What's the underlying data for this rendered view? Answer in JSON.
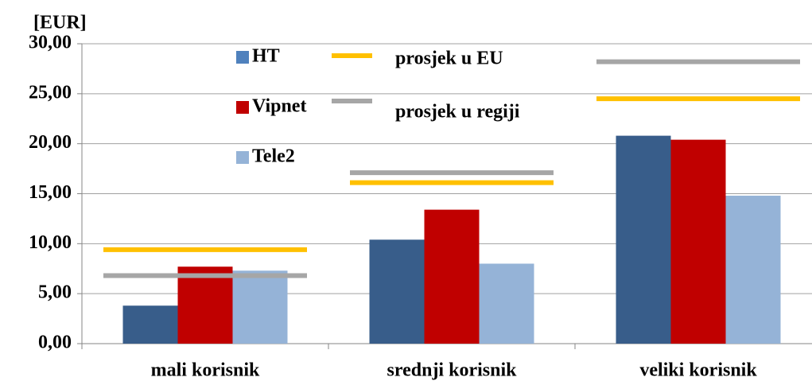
{
  "chart_data": {
    "type": "bar",
    "y_label": "[EUR]",
    "categories": [
      "mali korisnik",
      "srednji korisnik",
      "veliki korisnik"
    ],
    "series": [
      {
        "name": "HT",
        "color": "#385d8a",
        "values": [
          3.8,
          10.4,
          20.8
        ]
      },
      {
        "name": "Vipnet",
        "color": "#c00000",
        "values": [
          7.7,
          13.4,
          20.4
        ]
      },
      {
        "name": "Tele2",
        "color": "#95b3d7",
        "values": [
          7.3,
          8.0,
          14.8
        ]
      },
      {
        "name": "prosjek u EU",
        "type": "line",
        "color": "#ffc000",
        "values": [
          9.4,
          16.1,
          24.5
        ]
      },
      {
        "name": "prosjek u regiji",
        "type": "line",
        "color": "#a6a6a6",
        "values": [
          6.8,
          17.1,
          28.2
        ]
      }
    ],
    "ylim": [
      0,
      30
    ],
    "yticks": [
      {
        "value": 0,
        "label": "0,00"
      },
      {
        "value": 5,
        "label": "5,00"
      },
      {
        "value": 10,
        "label": "10,00"
      },
      {
        "value": 15,
        "label": "15,00"
      },
      {
        "value": 20,
        "label": "20,00"
      },
      {
        "value": 25,
        "label": "25,00"
      },
      {
        "value": 30,
        "label": "30,00"
      }
    ],
    "grid": true
  }
}
